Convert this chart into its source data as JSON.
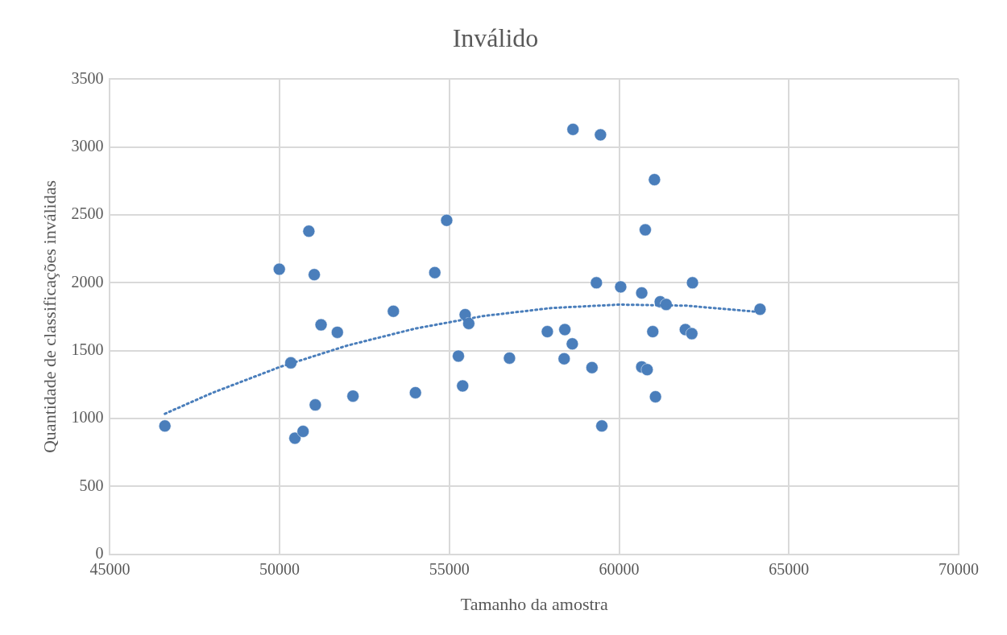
{
  "chart_data": {
    "type": "scatter",
    "title": "Inválido",
    "xlabel": "Tamanho da amostra",
    "ylabel": "Quantidade de classificações inválidas",
    "xlim": [
      45000,
      70000
    ],
    "xticks": [
      45000,
      50000,
      55000,
      60000,
      65000,
      70000
    ],
    "ylim": [
      0,
      3500
    ],
    "yticks": [
      0,
      500,
      1000,
      1500,
      2000,
      2500,
      3000,
      3500
    ],
    "grid": true,
    "legend": false,
    "series": [
      {
        "type": "scatter",
        "color": "#4a7ebb",
        "marker": "circle",
        "x": [
          46620,
          49990,
          50330,
          50450,
          50690,
          50860,
          51020,
          51050,
          51220,
          51700,
          52160,
          53350,
          54000,
          54570,
          54920,
          55265,
          55390,
          55465,
          55570,
          56770,
          57885,
          58380,
          58400,
          58620,
          58640,
          59200,
          59330,
          59450,
          59490,
          60045,
          60665,
          60665,
          60825,
          60770,
          61040,
          60990,
          61070,
          61210,
          61385,
          61950,
          62140,
          62160,
          64150
        ],
        "values": [
          945,
          2100,
          1410,
          855,
          905,
          2380,
          2060,
          1100,
          1690,
          1635,
          1165,
          1790,
          1190,
          2075,
          2460,
          1460,
          1240,
          1765,
          1700,
          1445,
          1640,
          1440,
          1655,
          1550,
          3130,
          1375,
          2000,
          3090,
          945,
          1970,
          1925,
          1380,
          1360,
          2390,
          2760,
          1640,
          1160,
          1860,
          1840,
          1655,
          1625,
          2000,
          1805
        ]
      },
      {
        "type": "line",
        "color": "#4a7ebb",
        "marker": "none",
        "line_style": "dotted",
        "x": [
          46620,
          48000,
          50000,
          52000,
          54000,
          56000,
          58000,
          60000,
          62000,
          64150
        ],
        "values": [
          1035,
          1187,
          1379,
          1538,
          1663,
          1755,
          1814,
          1839,
          1831,
          1784
        ]
      }
    ]
  }
}
